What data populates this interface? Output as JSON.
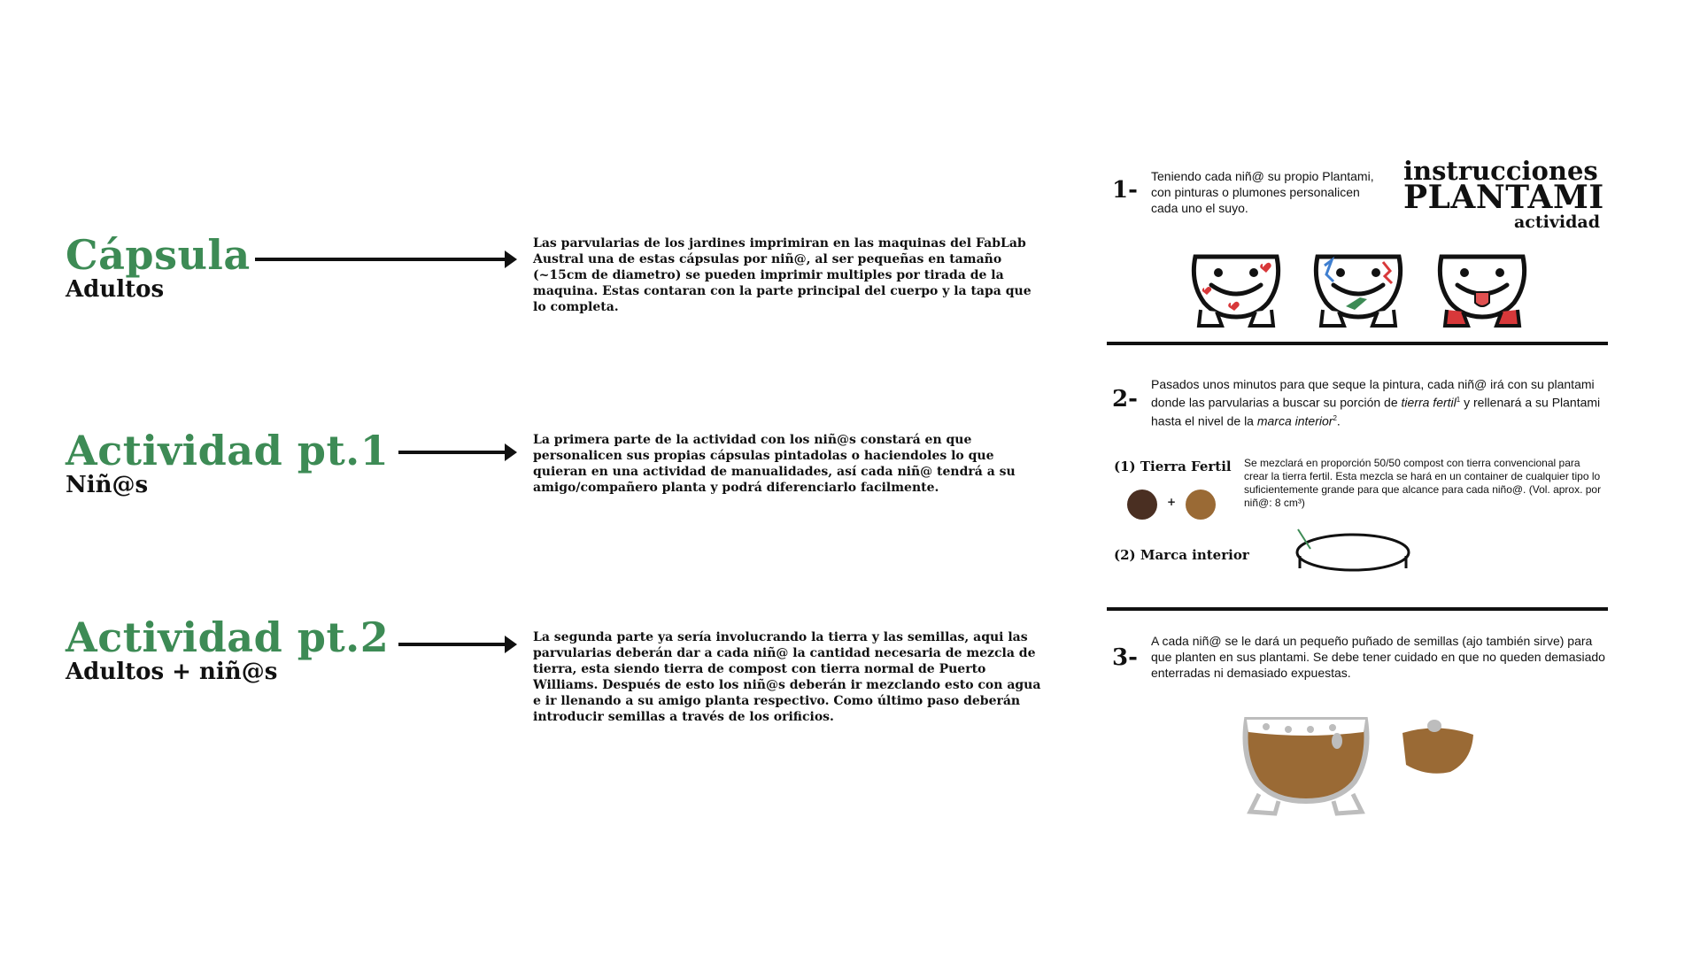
{
  "sections": [
    {
      "title": "Cápsula",
      "subtitle": "Adultos",
      "description": "Las parvularias de los jardines imprimiran en las maquinas del FabLab Austral una de estas cápsulas por niñ@, al ser pequeñas en tamaño (~15cm de diametro) se pueden imprimir multiples por tirada de la maquina. Estas contaran con la parte principal del cuerpo y la tapa que lo completa."
    },
    {
      "title": "Actividad pt.1",
      "subtitle": "Niñ@s",
      "description": "La primera parte de la actividad con los niñ@s constará en que personalicen sus propias cápsulas pintadolas o haciendoles lo que quieran en una actividad de manualidades, así cada niñ@ tendrá a su amigo/compañero planta y podrá diferenciarlo facilmente."
    },
    {
      "title": "Actividad pt.2",
      "subtitle": "Adultos + niñ@s",
      "description": "La segunda parte ya sería involucrando la tierra y las semillas, aqui las parvularias deberán dar a cada niñ@ la cantidad necesaria de mezcla de tierra, esta siendo tierra de compost con tierra normal de Puerto Williams. Después de esto los niñ@s deberán ir mezclando esto con agua e ir llenando a su amigo planta respectivo. Como último paso deberán introducir semillas a través de los orificios."
    }
  ],
  "panel": {
    "heading_line1": "instrucciones",
    "heading_line2": "PLANTAMI",
    "heading_line3": "actividad",
    "step1": {
      "number": "1-",
      "text": "Teniendo cada niñ@ su propio Plantami, con pinturas o plumones personalicen cada uno el suyo."
    },
    "step2": {
      "number": "2-",
      "text_a": "Pasados unos minutos para que seque la pintura, cada niñ@ irá con su plantami donde las parvularias a buscar su porción de ",
      "text_em1": "tierra fertil",
      "text_sup1": "1",
      "text_b": " y rellenará a su Plantami hasta el nivel de la ",
      "text_em2": "marca interior",
      "text_sup2": "2",
      "text_c": ".",
      "note1_label": "(1) Tierra Fertil",
      "note1_text": "Se mezclará en proporción 50/50 compost con tierra convencional para crear la tierra fertil. Esta mezcla se hará en un container de cualquier tipo lo suficientemente grande para que alcance para cada niño@. (Vol. aprox. por niñ@: 8 cm³)",
      "plus": "+",
      "note2_label": "(2) Marca interior"
    },
    "step3": {
      "number": "3-",
      "text": "A cada niñ@ se le dará un pequeño puñado de semillas (ajo también sirve) para que planten en sus plantami. Se debe tener cuidado en que no queden demasiado enterradas ni demasiado expuestas."
    }
  },
  "colors": {
    "accent_green": "#3d8b55",
    "compost": "#4a2f22",
    "soil": "#9a6a35",
    "pot_grey": "#bdbdbd",
    "heart_red": "#d8383a",
    "decor_blue": "#3f7fd0"
  },
  "icons": [
    "right-arrow-icon",
    "plantami-face-icon",
    "soil-pot-icon",
    "pot-lid-icon",
    "soil-dot-icon",
    "marca-ring-icon"
  ]
}
